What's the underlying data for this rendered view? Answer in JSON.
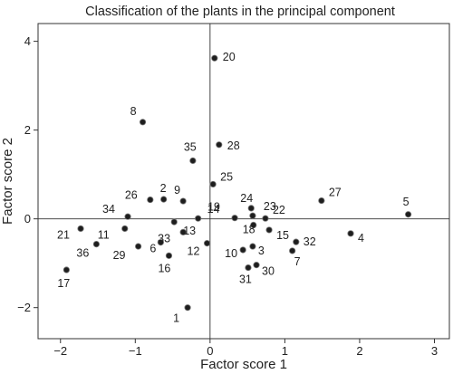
{
  "chart_data": {
    "type": "scatter",
    "title": "Classification of the plants in the principal component",
    "xlabel": "Factor score 1",
    "ylabel": "Factor score 2",
    "xlim": [
      -2.3,
      3.2
    ],
    "ylim": [
      -2.7,
      4.4
    ],
    "xticks": [
      -2,
      -1,
      0,
      1,
      2,
      3
    ],
    "yticks": [
      -2,
      0,
      2,
      4
    ],
    "xtick_labels": [
      "−2",
      "−1",
      "0",
      "1",
      "2",
      "3"
    ],
    "ytick_labels": [
      "−2",
      "0",
      "2",
      "4"
    ],
    "reference_lines": {
      "x": 0,
      "y": 0
    },
    "grid": false,
    "points": [
      {
        "label": "1",
        "x": -0.3,
        "y": -2.0
      },
      {
        "label": "2",
        "x": -0.62,
        "y": 0.44
      },
      {
        "label": "3",
        "x": 0.57,
        "y": -0.62
      },
      {
        "label": "4",
        "x": 1.88,
        "y": -0.33
      },
      {
        "label": "5",
        "x": 2.65,
        "y": 0.1
      },
      {
        "label": "6",
        "x": -0.66,
        "y": -0.53
      },
      {
        "label": "7",
        "x": 1.1,
        "y": -0.72
      },
      {
        "label": "8",
        "x": -0.9,
        "y": 2.18
      },
      {
        "label": "9",
        "x": -0.36,
        "y": 0.4
      },
      {
        "label": "10",
        "x": 0.44,
        "y": -0.7
      },
      {
        "label": "11",
        "x": -1.14,
        "y": -0.22
      },
      {
        "label": "12",
        "x": -0.04,
        "y": -0.55
      },
      {
        "label": "13",
        "x": -0.48,
        "y": -0.07
      },
      {
        "label": "14",
        "x": -0.16,
        "y": 0.01
      },
      {
        "label": "15",
        "x": 0.79,
        "y": -0.25
      },
      {
        "label": "16",
        "x": -0.55,
        "y": -0.83
      },
      {
        "label": "17",
        "x": -1.92,
        "y": -1.15
      },
      {
        "label": "18",
        "x": 0.58,
        "y": -0.14
      },
      {
        "label": "19",
        "x": 0.33,
        "y": 0.02
      },
      {
        "label": "20",
        "x": 0.06,
        "y": 3.62
      },
      {
        "label": "21",
        "x": -1.73,
        "y": -0.22
      },
      {
        "label": "22",
        "x": 0.74,
        "y": 0.01
      },
      {
        "label": "23",
        "x": 0.57,
        "y": 0.07
      },
      {
        "label": "24",
        "x": 0.55,
        "y": 0.24
      },
      {
        "label": "25",
        "x": 0.04,
        "y": 0.78
      },
      {
        "label": "26",
        "x": -0.8,
        "y": 0.43
      },
      {
        "label": "27",
        "x": 1.49,
        "y": 0.41
      },
      {
        "label": "28",
        "x": 0.12,
        "y": 1.67
      },
      {
        "label": "29",
        "x": -0.96,
        "y": -0.62
      },
      {
        "label": "30",
        "x": 0.62,
        "y": -1.04
      },
      {
        "label": "31",
        "x": 0.51,
        "y": -1.1
      },
      {
        "label": "32",
        "x": 1.15,
        "y": -0.52
      },
      {
        "label": "33",
        "x": -0.36,
        "y": -0.3
      },
      {
        "label": "34",
        "x": -1.1,
        "y": 0.05
      },
      {
        "label": "35",
        "x": -0.23,
        "y": 1.31
      },
      {
        "label": "36",
        "x": -1.52,
        "y": -0.57
      }
    ]
  }
}
